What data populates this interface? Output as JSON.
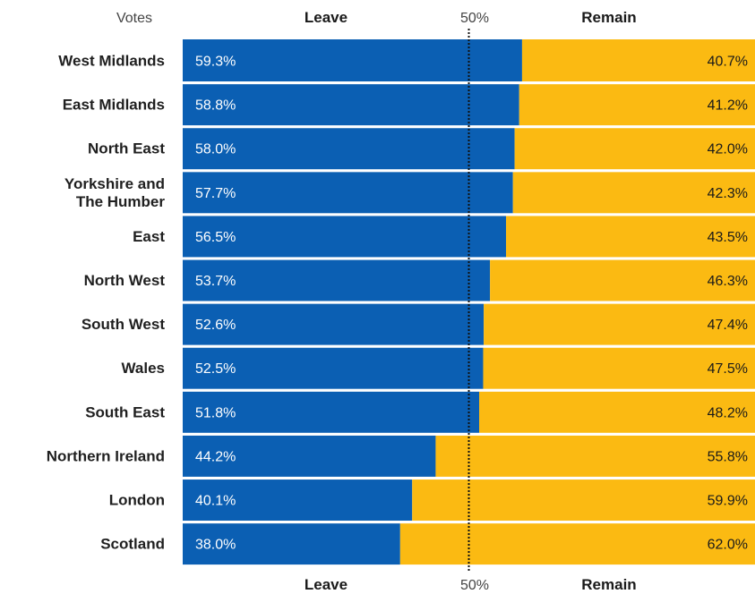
{
  "header": {
    "votes_label": "Votes",
    "leave_label": "Leave",
    "mid_label": "50%",
    "remain_label": "Remain"
  },
  "footer": {
    "leave_label": "Leave",
    "mid_label": "50%",
    "remain_label": "Remain"
  },
  "colors": {
    "leave": "#0b5fb3",
    "remain": "#fbba12",
    "midline": "#111111",
    "separator": "#ffffff"
  },
  "chart_data": {
    "type": "bar",
    "orientation": "horizontal-stacked-100",
    "title": "",
    "categories": [
      [
        "West Midlands"
      ],
      [
        "East Midlands"
      ],
      [
        "North East"
      ],
      [
        "Yorkshire and",
        "The Humber"
      ],
      [
        "East"
      ],
      [
        "North West"
      ],
      [
        "South West"
      ],
      [
        "Wales"
      ],
      [
        "South East"
      ],
      [
        "Northern Ireland"
      ],
      [
        "London"
      ],
      [
        "Scotland"
      ]
    ],
    "series": [
      {
        "name": "Leave",
        "values": [
          59.3,
          58.8,
          58.0,
          57.7,
          56.5,
          53.7,
          52.6,
          52.5,
          51.8,
          44.2,
          40.1,
          38.0
        ],
        "labels": [
          "59.3%",
          "58.8%",
          "58.0%",
          "57.7%",
          "56.5%",
          "53.7%",
          "52.6%",
          "52.5%",
          "51.8%",
          "44.2%",
          "40.1%",
          "38.0%"
        ]
      },
      {
        "name": "Remain",
        "values": [
          40.7,
          41.2,
          42.0,
          42.3,
          43.5,
          46.3,
          47.4,
          47.5,
          48.2,
          55.8,
          59.9,
          62.0
        ],
        "labels": [
          "40.7%",
          "41.2%",
          "42.0%",
          "42.3%",
          "43.5%",
          "46.3%",
          "47.4%",
          "47.5%",
          "48.2%",
          "55.8%",
          "59.9%",
          "62.0%"
        ]
      }
    ],
    "reference_line": 50,
    "xlim": [
      0,
      100
    ],
    "grid": false
  }
}
